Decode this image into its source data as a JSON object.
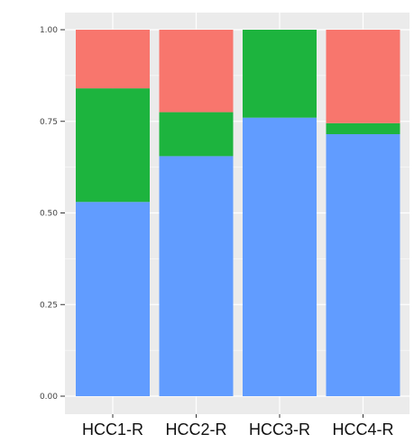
{
  "chart_data": {
    "type": "bar",
    "stacked": true,
    "normalized": true,
    "categories": [
      "HCC1-R",
      "HCC2-R",
      "HCC3-R",
      "HCC4-R"
    ],
    "series": [
      {
        "color": "#619CFF",
        "values": [
          0.53,
          0.655,
          0.76,
          0.715
        ]
      },
      {
        "color": "#1DB43E",
        "values": [
          0.31,
          0.12,
          0.24,
          0.03
        ]
      },
      {
        "color": "#F8766D",
        "values": [
          0.16,
          0.225,
          0.0,
          0.255
        ]
      }
    ],
    "y_ticks": [
      "0.00",
      "0.25",
      "0.50",
      "0.75",
      "1.00"
    ],
    "y_tick_values": [
      0,
      0.25,
      0.5,
      0.75,
      1.0
    ],
    "ylim": [
      0,
      1
    ],
    "title": "",
    "xlabel": "",
    "ylabel": "",
    "grid": true,
    "panel_background": "#EBEBEB",
    "gridline_color": "#FFFFFF"
  }
}
